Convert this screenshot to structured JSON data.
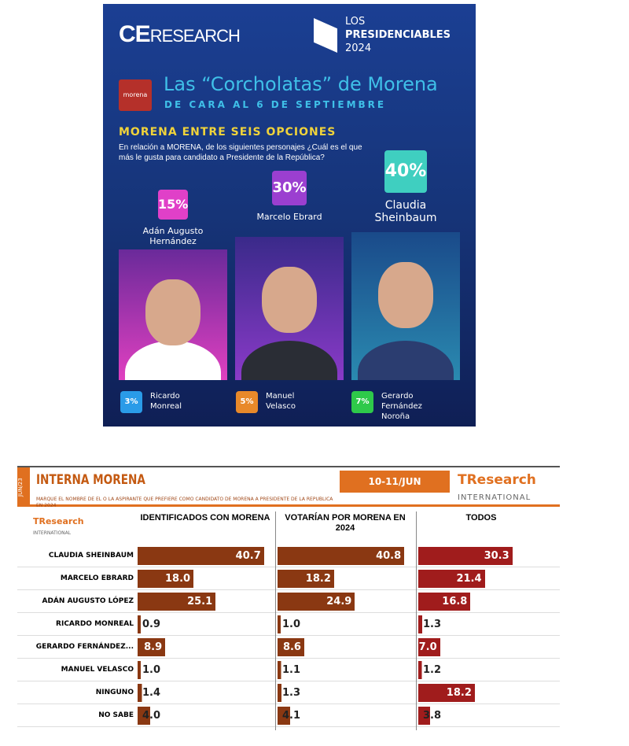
{
  "top": {
    "brand": "CE",
    "brand_rest": "RESEARCH",
    "pres_line1": "LOS",
    "pres_line2": "PRESIDENCIABLES",
    "pres_line3": "2024",
    "party_logo": "morena",
    "title": "Las “Corcholatas” de Morena",
    "subtitle": "DE CARA AL 6 DE SEPTIEMBRE",
    "section": "MORENA ENTRE SEIS OPCIONES",
    "question": "En relación a MORENA, de los siguientes personajes ¿Cuál es el que más le gusta para candidato a Presidente de la República?",
    "main": [
      {
        "pct": "15%",
        "name": "Adán Augusto Hernández",
        "color": "#e040c8"
      },
      {
        "pct": "30%",
        "name": "Marcelo Ebrard",
        "color": "#9b3fd0"
      },
      {
        "pct": "40%",
        "name": "Claudia Sheinbaum",
        "color": "#3fcfc0"
      }
    ],
    "minor": [
      {
        "pct": "3%",
        "name": "Ricardo Monreal",
        "color": "#2a9be8"
      },
      {
        "pct": "5%",
        "name": "Manuel Velasco",
        "color": "#e8892a"
      },
      {
        "pct": "7%",
        "name": "Gerardo Fernández Noroña",
        "color": "#2ec94a"
      }
    ]
  },
  "chart_data": {
    "type": "bar",
    "title": "INTERNA MORENA",
    "side_label": "JUN/23",
    "date": "10-11/JUN",
    "subtitle": "MARQUE EL NOMBRE DE EL O LA ASPIRANTE QUE PREFIERE COMO CANDIDATO DE MORENA A PRESIDENTE DE LA REPUBLICA EN 2024",
    "brand": "TResearch",
    "brand_sub": "INTERNATIONAL",
    "categories": [
      "CLAUDIA SHEINBAUM",
      "MARCELO EBRARD",
      "ADÁN AUGUSTO LÓPEZ",
      "RICARDO MONREAL",
      "GERARDO FERNÁNDEZ...",
      "MANUEL VELASCO",
      "NINGUNO",
      "NO SABE"
    ],
    "series": [
      {
        "name": "IDENTIFICADOS CON MORENA",
        "color": "#8a3812",
        "values": [
          40.7,
          18.0,
          25.1,
          0.9,
          8.9,
          1.0,
          1.4,
          4.0
        ]
      },
      {
        "name": "VOTARÍAN POR MORENA EN 2024",
        "color": "#8a3812",
        "values": [
          40.8,
          18.2,
          24.9,
          1.0,
          8.6,
          1.1,
          1.3,
          4.1
        ]
      },
      {
        "name": "TODOS",
        "color": "#a01c1c",
        "values": [
          30.3,
          21.4,
          16.8,
          1.3,
          7.0,
          1.2,
          18.2,
          3.8
        ]
      }
    ]
  }
}
